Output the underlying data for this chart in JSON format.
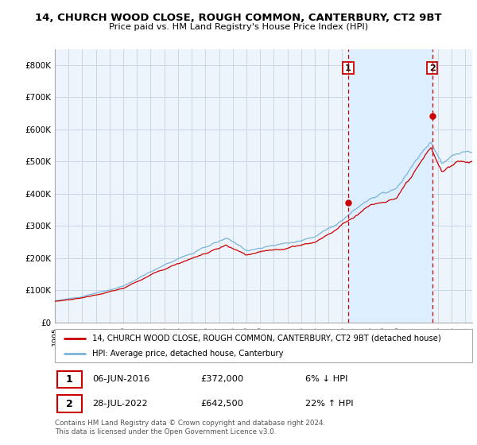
{
  "title": "14, CHURCH WOOD CLOSE, ROUGH COMMON, CANTERBURY, CT2 9BT",
  "subtitle": "Price paid vs. HM Land Registry's House Price Index (HPI)",
  "legend_line1": "14, CHURCH WOOD CLOSE, ROUGH COMMON, CANTERBURY, CT2 9BT (detached house)",
  "legend_line2": "HPI: Average price, detached house, Canterbury",
  "annotation1_date": "06-JUN-2016",
  "annotation1_price": "£372,000",
  "annotation1_hpi": "6% ↓ HPI",
  "annotation2_date": "28-JUL-2022",
  "annotation2_price": "£642,500",
  "annotation2_hpi": "22% ↑ HPI",
  "footer": "Contains HM Land Registry data © Crown copyright and database right 2024.\nThis data is licensed under the Open Government Licence v3.0.",
  "hpi_color": "#7ab4d8",
  "price_color": "#cc0000",
  "shade_color": "#ddeeff",
  "background_color": "#ffffff",
  "chart_bg": "#eef4fb",
  "grid_color": "#c8d8e8",
  "ylim": [
    0,
    850000
  ],
  "yticks": [
    0,
    100000,
    200000,
    300000,
    400000,
    500000,
    600000,
    700000,
    800000
  ],
  "ytick_labels": [
    "£0",
    "£100K",
    "£200K",
    "£300K",
    "£400K",
    "£500K",
    "£600K",
    "£700K",
    "£800K"
  ],
  "sale1_x": 2016.43,
  "sale1_y": 372000,
  "sale2_x": 2022.57,
  "sale2_y": 642500,
  "xlim_left": 1995.0,
  "xlim_right": 2025.5
}
